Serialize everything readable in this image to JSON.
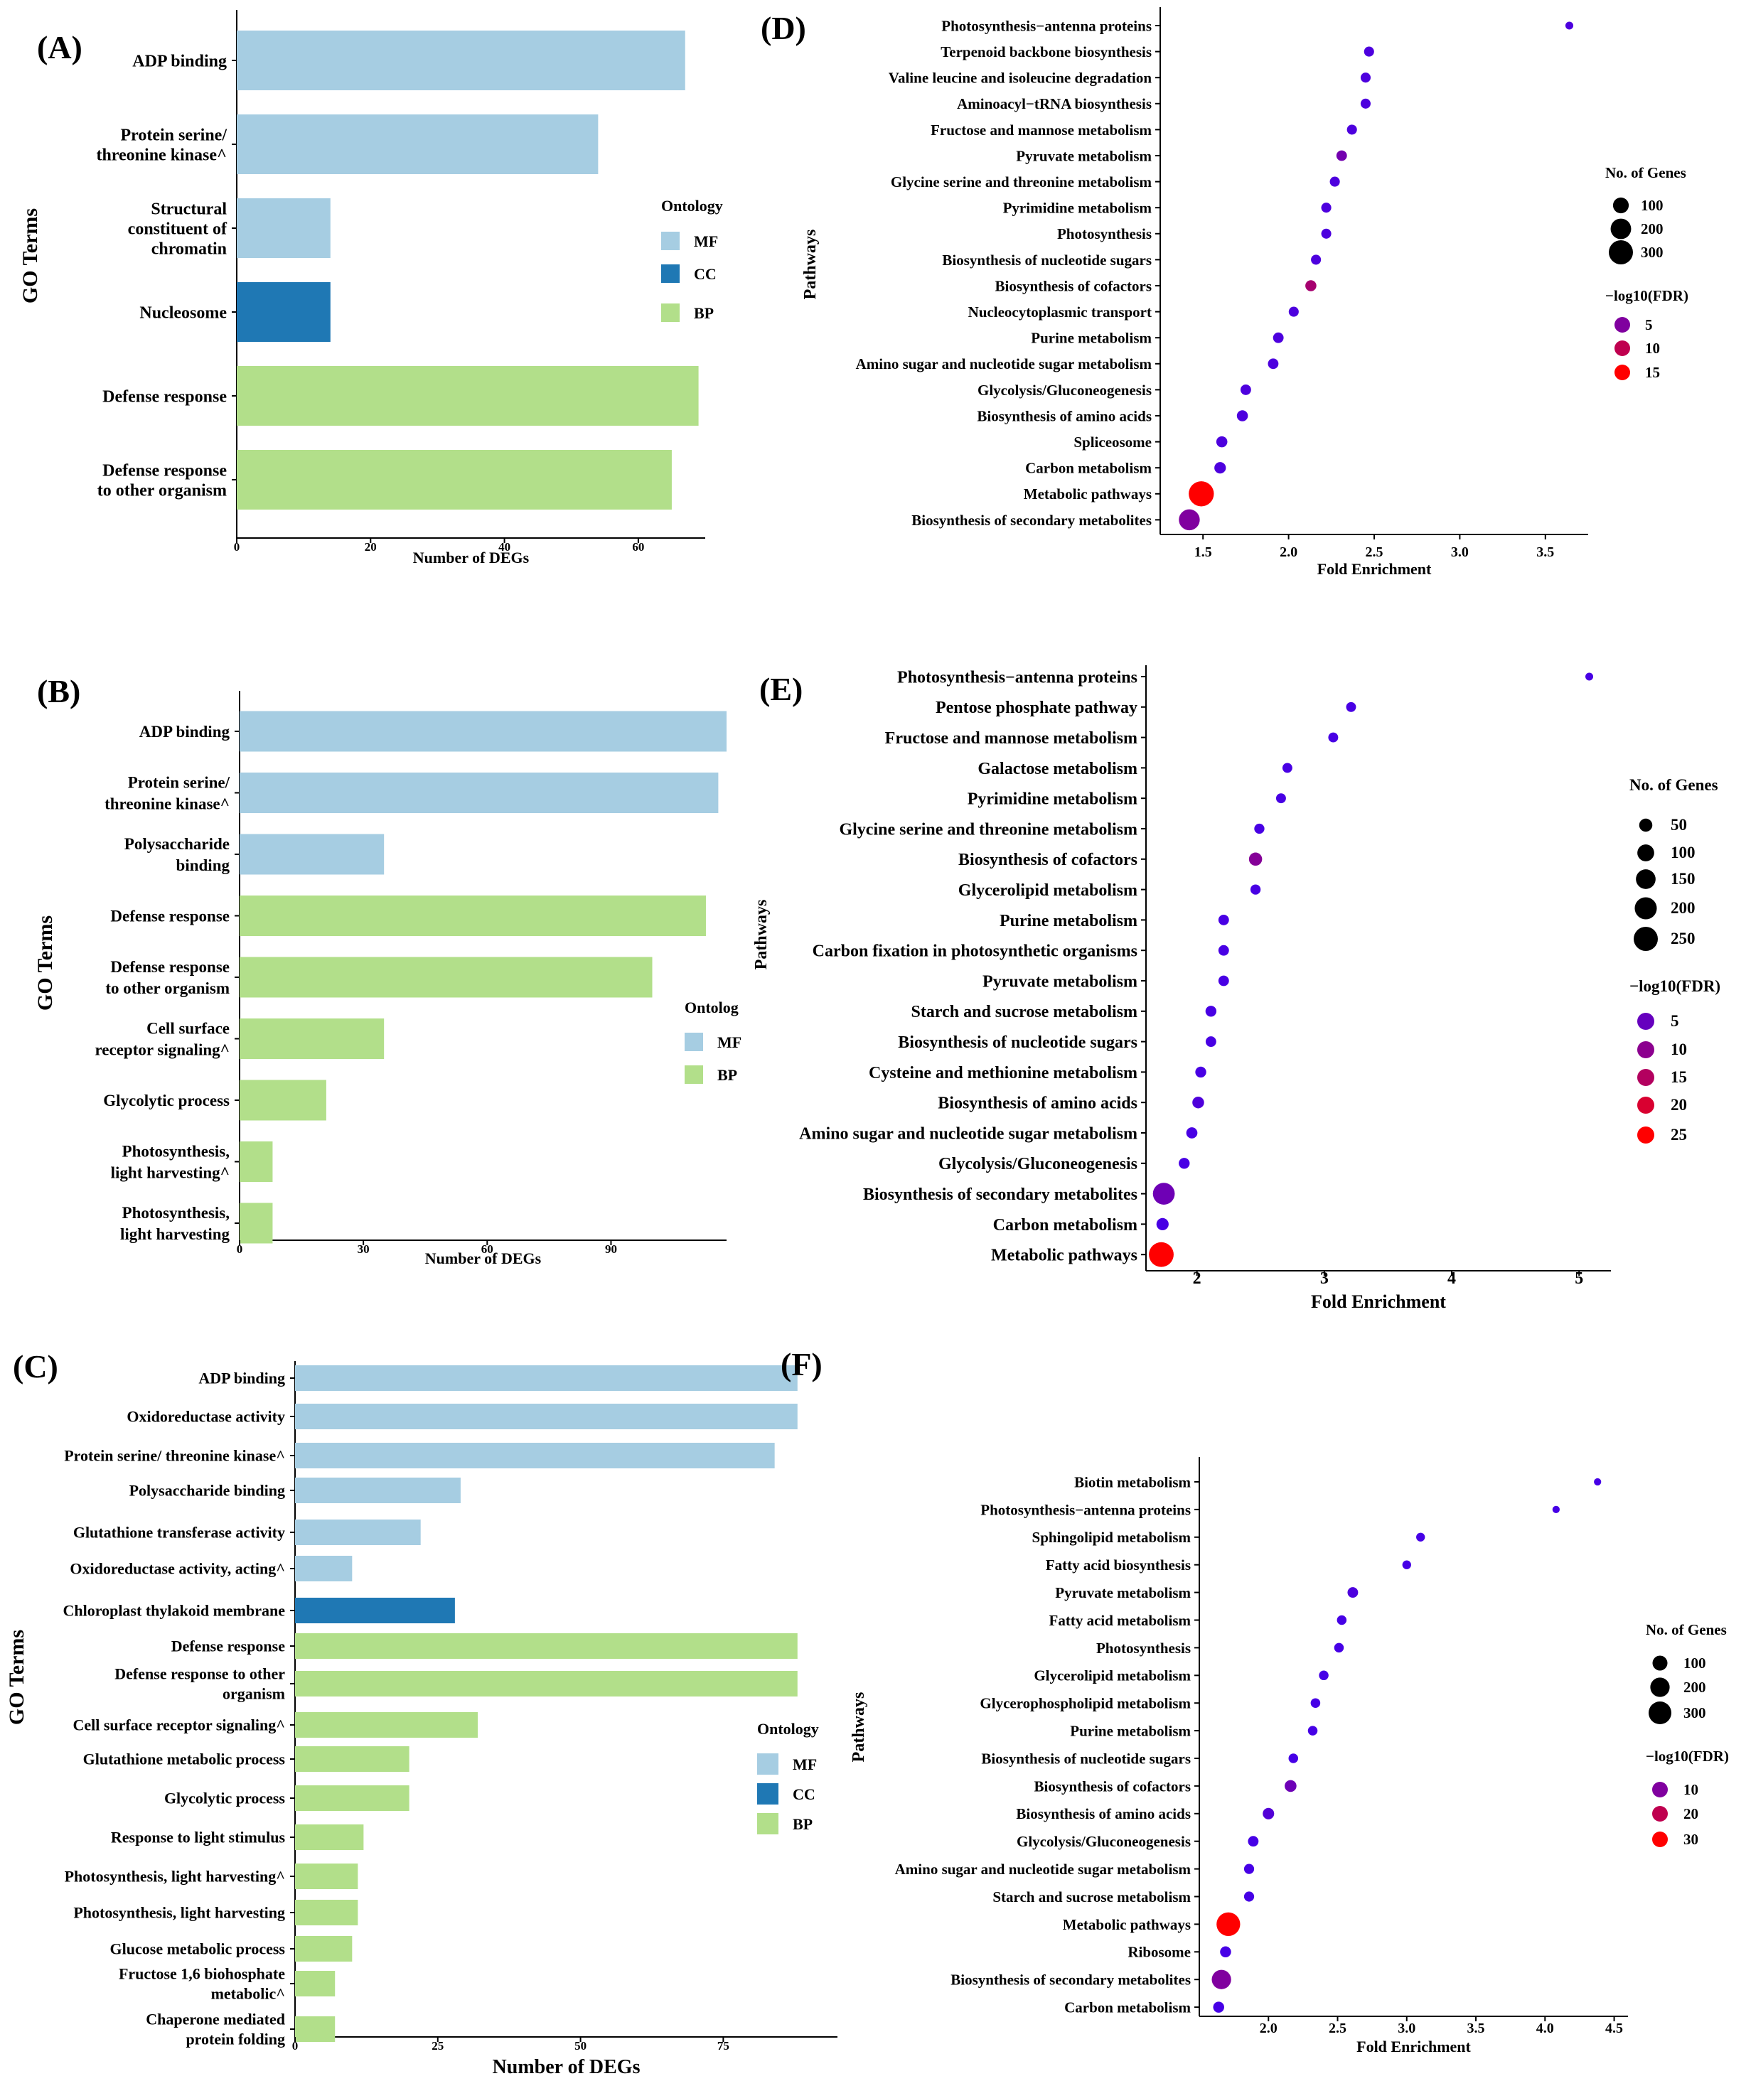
{
  "colors": {
    "MF": "#a6cde2",
    "CC": "#1f78b4",
    "BP": "#b2df8a"
  },
  "chart_data": [
    {
      "id": "A",
      "panel_label": "(A)",
      "type": "bar",
      "ylabel": "GO Terms",
      "xlabel": "Number of DEGs",
      "xticks": [
        "0",
        "20",
        "40",
        "60"
      ],
      "xlim": [
        0,
        70
      ],
      "legend": {
        "title": "Ontology",
        "items": [
          "MF",
          "CC",
          "BP"
        ]
      },
      "categories": [
        {
          "label": "ADP binding",
          "value": 67,
          "ontology": "MF"
        },
        {
          "label": "Protein serine/\nthreonine kinase^",
          "value": 54,
          "ontology": "MF"
        },
        {
          "label": "Structural\nconstituent of\nchromatin",
          "value": 14,
          "ontology": "MF"
        },
        {
          "label": "Nucleosome",
          "value": 14,
          "ontology": "CC"
        },
        {
          "label": "Defense response",
          "value": 69,
          "ontology": "BP"
        },
        {
          "label": "Defense response\nto other organism",
          "value": 65,
          "ontology": "BP"
        }
      ]
    },
    {
      "id": "B",
      "panel_label": "(B)",
      "type": "bar",
      "ylabel": "GO Terms",
      "xlabel": "Number of DEGs",
      "xticks": [
        "0",
        "30",
        "60",
        "90"
      ],
      "xlim": [
        0,
        117
      ],
      "legend": {
        "title": "Ontolog",
        "items": [
          "MF",
          "BP"
        ]
      },
      "categories": [
        {
          "label": "ADP binding",
          "value": 118,
          "ontology": "MF"
        },
        {
          "label": "Protein serine/\nthreonine kinase^",
          "value": 116,
          "ontology": "MF"
        },
        {
          "label": "Polysaccharide\nbinding",
          "value": 35,
          "ontology": "MF"
        },
        {
          "label": "Defense response",
          "value": 113,
          "ontology": "BP"
        },
        {
          "label": "Defense response\nto other organism",
          "value": 100,
          "ontology": "BP"
        },
        {
          "label": "Cell surface\nreceptor signaling^",
          "value": 35,
          "ontology": "BP"
        },
        {
          "label": "Glycolytic process",
          "value": 21,
          "ontology": "BP"
        },
        {
          "label": "Photosynthesis,\nlight harvesting^",
          "value": 8,
          "ontology": "BP"
        },
        {
          "label": "Photosynthesis,\nlight harvesting",
          "value": 8,
          "ontology": "BP"
        }
      ]
    },
    {
      "id": "C",
      "panel_label": "(C)",
      "type": "bar",
      "ylabel": "GO Terms",
      "xlabel": "Number of DEGs",
      "xticks": [
        "0",
        "25",
        "50",
        "75"
      ],
      "xlim": [
        0,
        95
      ],
      "legend": {
        "title": "Ontology",
        "items": [
          "MF",
          "CC",
          "BP"
        ]
      },
      "categories": [
        {
          "label": "ADP binding",
          "value": 88,
          "ontology": "MF"
        },
        {
          "label": "Oxidoreductase activity",
          "value": 88,
          "ontology": "MF"
        },
        {
          "label": "Protein serine/ threonine kinase^",
          "value": 84,
          "ontology": "MF"
        },
        {
          "label": "Polysaccharide binding",
          "value": 29,
          "ontology": "MF"
        },
        {
          "label": "Glutathione transferase activity",
          "value": 22,
          "ontology": "MF"
        },
        {
          "label": "Oxidoreductase activity, acting^",
          "value": 10,
          "ontology": "MF"
        },
        {
          "label": "Chloroplast thylakoid membrane",
          "value": 28,
          "ontology": "CC"
        },
        {
          "label": "Defense response",
          "value": 88,
          "ontology": "BP"
        },
        {
          "label": "Defense response to other\norganism",
          "value": 88,
          "ontology": "BP"
        },
        {
          "label": "Cell surface receptor signaling^",
          "value": 32,
          "ontology": "BP"
        },
        {
          "label": "Glutathione metabolic process",
          "value": 20,
          "ontology": "BP"
        },
        {
          "label": "Glycolytic process",
          "value": 20,
          "ontology": "BP"
        },
        {
          "label": "Response to light stimulus",
          "value": 12,
          "ontology": "BP"
        },
        {
          "label": "Photosynthesis, light harvesting^",
          "value": 11,
          "ontology": "BP"
        },
        {
          "label": "Photosynthesis,  light  harvesting",
          "value": 11,
          "ontology": "BP"
        },
        {
          "label": "Glucose metabolic process",
          "value": 10,
          "ontology": "BP"
        },
        {
          "label": "Fructose 1,6 biohosphate\nmetabolic^",
          "value": 7,
          "ontology": "BP"
        },
        {
          "label": "Chaperone mediated\nprotein folding",
          "value": 7,
          "ontology": "BP"
        }
      ]
    },
    {
      "id": "D",
      "panel_label": "(D)",
      "type": "scatter",
      "ylabel": "Pathways",
      "xlabel": "Fold Enrichment",
      "xlim": [
        1.25,
        3.75
      ],
      "xticks": [
        1.5,
        2.0,
        2.5,
        3.0,
        3.5
      ],
      "size_legend": {
        "title": "No. of Genes",
        "values": [
          100,
          200,
          300
        ]
      },
      "color_legend": {
        "title": "−log10(FDR)",
        "values": [
          5,
          10,
          15
        ],
        "max": 15
      },
      "points": [
        {
          "label": "Photosynthesis−antenna proteins",
          "x": 3.64,
          "size": 10,
          "fdr": 1
        },
        {
          "label": "Terpenoid backbone biosynthesis",
          "x": 2.47,
          "size": 25,
          "fdr": 1
        },
        {
          "label": "Valine leucine and isoleucine degradation",
          "x": 2.45,
          "size": 25,
          "fdr": 1
        },
        {
          "label": "Aminoacyl−tRNA biosynthesis",
          "x": 2.45,
          "size": 25,
          "fdr": 1
        },
        {
          "label": "Fructose and mannose metabolism",
          "x": 2.37,
          "size": 25,
          "fdr": 1
        },
        {
          "label": "Pyruvate metabolism",
          "x": 2.31,
          "size": 30,
          "fdr": 4
        },
        {
          "label": "Glycine serine and threonine metabolism",
          "x": 2.27,
          "size": 25,
          "fdr": 1
        },
        {
          "label": "Pyrimidine metabolism",
          "x": 2.22,
          "size": 25,
          "fdr": 1
        },
        {
          "label": "Photosynthesis",
          "x": 2.22,
          "size": 25,
          "fdr": 1
        },
        {
          "label": "Biosynthesis of nucleotide sugars",
          "x": 2.16,
          "size": 25,
          "fdr": 1
        },
        {
          "label": "Biosynthesis of cofactors",
          "x": 2.13,
          "size": 35,
          "fdr": 8
        },
        {
          "label": "Nucleocytoplasmic transport",
          "x": 2.03,
          "size": 25,
          "fdr": 1
        },
        {
          "label": "Purine metabolism",
          "x": 1.94,
          "size": 30,
          "fdr": 1
        },
        {
          "label": "Amino sugar and nucleotide sugar metabolism",
          "x": 1.91,
          "size": 30,
          "fdr": 1
        },
        {
          "label": "Glycolysis/Gluconeogenesis",
          "x": 1.75,
          "size": 30,
          "fdr": 1
        },
        {
          "label": "Biosynthesis of amino acids",
          "x": 1.73,
          "size": 35,
          "fdr": 1
        },
        {
          "label": "Spliceosome",
          "x": 1.61,
          "size": 35,
          "fdr": 1
        },
        {
          "label": "Carbon metabolism",
          "x": 1.6,
          "size": 40,
          "fdr": 1
        },
        {
          "label": "Metabolic pathways",
          "x": 1.49,
          "size": 330,
          "fdr": 16
        },
        {
          "label": "Biosynthesis of secondary metabolites",
          "x": 1.42,
          "size": 210,
          "fdr": 5
        }
      ]
    },
    {
      "id": "E",
      "panel_label": "(E)",
      "type": "scatter",
      "ylabel": "Pathways",
      "xlabel": "Fold Enrichment",
      "xlim": [
        1.6,
        5.25
      ],
      "xticks": [
        2,
        3,
        4,
        5
      ],
      "size_legend": {
        "title": "No. of Genes",
        "values": [
          50,
          100,
          150,
          200,
          250
        ]
      },
      "color_legend": {
        "title": "−log10(FDR)",
        "values": [
          5,
          10,
          15,
          20,
          25
        ],
        "max": 25
      },
      "points": [
        {
          "label": "Photosynthesis−antenna proteins",
          "x": 5.08,
          "size": 8,
          "fdr": 1
        },
        {
          "label": "Pentose phosphate pathway",
          "x": 3.21,
          "size": 20,
          "fdr": 1
        },
        {
          "label": "Fructose and mannose metabolism",
          "x": 3.07,
          "size": 20,
          "fdr": 1
        },
        {
          "label": "Galactose metabolism",
          "x": 2.71,
          "size": 20,
          "fdr": 1
        },
        {
          "label": "Pyrimidine metabolism",
          "x": 2.66,
          "size": 20,
          "fdr": 1
        },
        {
          "label": "Glycine serine and threonine metabolism",
          "x": 2.49,
          "size": 22,
          "fdr": 1
        },
        {
          "label": "Biosynthesis of cofactors",
          "x": 2.46,
          "size": 50,
          "fdr": 9
        },
        {
          "label": "Glycerolipid metabolism",
          "x": 2.46,
          "size": 22,
          "fdr": 1
        },
        {
          "label": "Purine metabolism",
          "x": 2.21,
          "size": 25,
          "fdr": 1
        },
        {
          "label": "Carbon fixation in photosynthetic organisms",
          "x": 2.21,
          "size": 25,
          "fdr": 1
        },
        {
          "label": "Pyruvate metabolism",
          "x": 2.21,
          "size": 25,
          "fdr": 1
        },
        {
          "label": "Starch and sucrose metabolism",
          "x": 2.11,
          "size": 28,
          "fdr": 1
        },
        {
          "label": "Biosynthesis of nucleotide sugars",
          "x": 2.11,
          "size": 25,
          "fdr": 1
        },
        {
          "label": "Cysteine and methionine metabolism",
          "x": 2.03,
          "size": 28,
          "fdr": 1
        },
        {
          "label": "Biosynthesis of amino acids",
          "x": 2.01,
          "size": 35,
          "fdr": 2
        },
        {
          "label": "Amino sugar and nucleotide sugar metabolism",
          "x": 1.96,
          "size": 30,
          "fdr": 1
        },
        {
          "label": "Glycolysis/Gluconeogenesis",
          "x": 1.9,
          "size": 28,
          "fdr": 1
        },
        {
          "label": "Biosynthesis of secondary metabolites",
          "x": 1.74,
          "size": 195,
          "fdr": 6
        },
        {
          "label": "Carbon metabolism",
          "x": 1.73,
          "size": 40,
          "fdr": 1
        },
        {
          "label": "Metabolic pathways",
          "x": 1.72,
          "size": 265,
          "fdr": 27
        }
      ]
    },
    {
      "id": "F",
      "panel_label": "(F)",
      "type": "scatter",
      "ylabel": "Pathways",
      "xlabel": "Fold Enrichment",
      "xlim": [
        1.5,
        4.6
      ],
      "xticks": [
        2.0,
        2.5,
        3.0,
        3.5,
        4.0,
        4.5
      ],
      "size_legend": {
        "title": "No. of Genes",
        "values": [
          100,
          200,
          300
        ]
      },
      "color_legend": {
        "title": "−log10(FDR)",
        "values": [
          10,
          20,
          30
        ],
        "max": 30
      },
      "points": [
        {
          "label": "Biotin metabolism",
          "x": 4.38,
          "size": 8,
          "fdr": 1
        },
        {
          "label": "Photosynthesis−antenna proteins",
          "x": 4.08,
          "size": 8,
          "fdr": 1
        },
        {
          "label": "Sphingolipid metabolism",
          "x": 3.1,
          "size": 18,
          "fdr": 1
        },
        {
          "label": "Fatty acid biosynthesis",
          "x": 3.0,
          "size": 18,
          "fdr": 1
        },
        {
          "label": "Pyruvate metabolism",
          "x": 2.61,
          "size": 35,
          "fdr": 2
        },
        {
          "label": "Fatty acid metabolism",
          "x": 2.53,
          "size": 25,
          "fdr": 1
        },
        {
          "label": "Photosynthesis",
          "x": 2.51,
          "size": 25,
          "fdr": 1
        },
        {
          "label": "Glycerolipid metabolism",
          "x": 2.4,
          "size": 25,
          "fdr": 1
        },
        {
          "label": "Glycerophospholipid metabolism",
          "x": 2.34,
          "size": 25,
          "fdr": 1
        },
        {
          "label": "Purine metabolism",
          "x": 2.32,
          "size": 25,
          "fdr": 1
        },
        {
          "label": "Biosynthesis of nucleotide sugars",
          "x": 2.18,
          "size": 25,
          "fdr": 1
        },
        {
          "label": "Biosynthesis of cofactors",
          "x": 2.16,
          "size": 50,
          "fdr": 7
        },
        {
          "label": "Biosynthesis of amino acids",
          "x": 2.0,
          "size": 45,
          "fdr": 3
        },
        {
          "label": "Glycolysis/Gluconeogenesis",
          "x": 1.89,
          "size": 35,
          "fdr": 1
        },
        {
          "label": "Amino sugar and nucleotide sugar metabolism",
          "x": 1.86,
          "size": 30,
          "fdr": 1
        },
        {
          "label": "Starch and sucrose metabolism",
          "x": 1.86,
          "size": 30,
          "fdr": 1
        },
        {
          "label": "Metabolic pathways",
          "x": 1.71,
          "size": 330,
          "fdr": 33
        },
        {
          "label": "Ribosome",
          "x": 1.69,
          "size": 40,
          "fdr": 1
        },
        {
          "label": "Biosynthesis of secondary metabolites",
          "x": 1.66,
          "size": 200,
          "fdr": 10
        },
        {
          "label": "Carbon metabolism",
          "x": 1.64,
          "size": 40,
          "fdr": 1
        }
      ]
    }
  ]
}
